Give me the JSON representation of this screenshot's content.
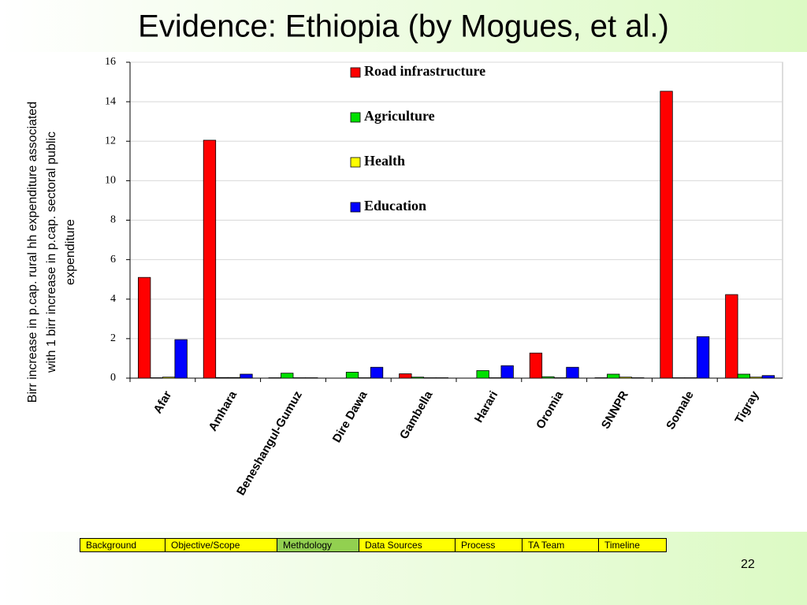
{
  "title": "Evidence: Ethiopia (by Mogues, et al.)",
  "chart_data": {
    "type": "bar",
    "ylabel": [
      "Birr increase in p.cap. rural hh expenditure associated",
      "with 1 birr increase in p.cap. sectoral public",
      "expenditure"
    ],
    "categories": [
      "Afar",
      "Amhara",
      "Beneshangul-Gumuz",
      "Dire Dawa",
      "Gambella",
      "Harari",
      "Oromia",
      "SNNPR",
      "Somale",
      "Tigray"
    ],
    "series": [
      {
        "name": "Road infrastructure",
        "color": "#ff0000",
        "values": [
          5.1,
          12.05,
          0.02,
          0,
          0.22,
          0,
          1.27,
          0.02,
          14.53,
          4.23
        ]
      },
      {
        "name": "Agriculture",
        "color": "#00e000",
        "values": [
          0.02,
          0.03,
          0.25,
          0.3,
          0.05,
          0.38,
          0.07,
          0.2,
          0.02,
          0.2
        ]
      },
      {
        "name": "Health",
        "color": "#ffff00",
        "values": [
          0.05,
          0.03,
          0.02,
          0.02,
          0.02,
          0.02,
          0.02,
          0.05,
          0.02,
          0.05
        ]
      },
      {
        "name": "Education",
        "color": "#0000ff",
        "values": [
          1.95,
          0.2,
          0.02,
          0.55,
          0.02,
          0.63,
          0.55,
          0.02,
          2.1,
          0.13
        ]
      }
    ],
    "ylim": [
      0,
      16
    ],
    "yticks": [
      0,
      2,
      4,
      6,
      8,
      10,
      12,
      14,
      16
    ],
    "grid": true,
    "legend": "top-right"
  },
  "nav": [
    "Background",
    "Objective/Scope",
    "Methdology",
    "Data Sources",
    "Process",
    "TA Team",
    "Timeline"
  ],
  "page_number": 22
}
